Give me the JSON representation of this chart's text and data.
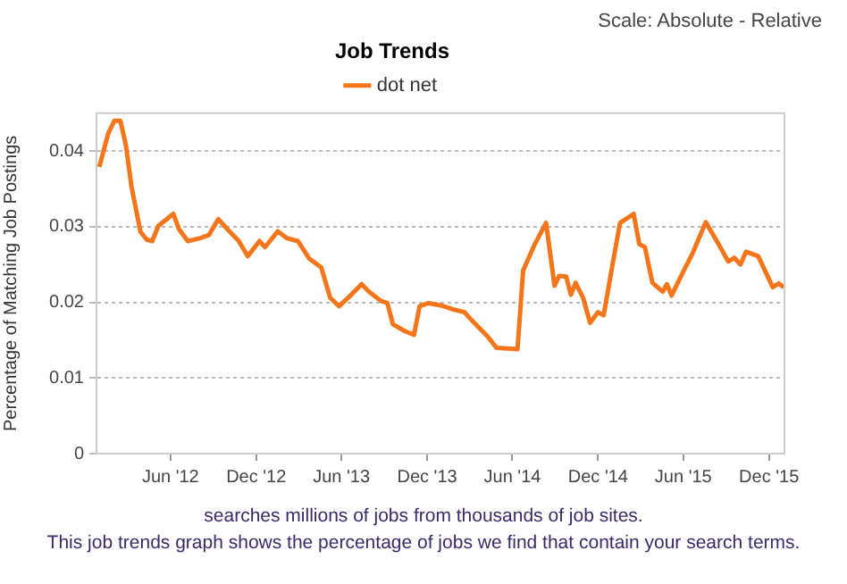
{
  "chart_data": {
    "type": "line",
    "title": "Job Trends",
    "ylabel": "Percentage of Matching Job Postings",
    "x": [
      "2012-01-01",
      "2012-01-20",
      "2012-02-02",
      "2012-02-15",
      "2012-02-27",
      "2012-03-10",
      "2012-03-29",
      "2012-04-11",
      "2012-04-23",
      "2012-05-06",
      "2012-06-07",
      "2012-06-19",
      "2012-07-08",
      "2012-08-04",
      "2012-08-22",
      "2012-09-11",
      "2012-09-30",
      "2012-10-25",
      "2012-11-13",
      "2012-12-08",
      "2012-12-20",
      "2013-01-16",
      "2013-02-04",
      "2013-02-28",
      "2013-03-24",
      "2013-04-19",
      "2013-05-08",
      "2013-05-27",
      "2013-06-22",
      "2013-07-14",
      "2013-07-30",
      "2013-08-24",
      "2013-09-07",
      "2013-09-19",
      "2013-10-14",
      "2013-11-03",
      "2013-11-15",
      "2013-12-04",
      "2013-12-30",
      "2014-01-24",
      "2014-02-19",
      "2014-03-02",
      "2014-04-09",
      "2014-04-28",
      "2014-06-12",
      "2014-06-24",
      "2014-07-19",
      "2014-08-12",
      "2014-08-30",
      "2014-09-09",
      "2014-09-24",
      "2014-10-04",
      "2014-10-14",
      "2014-10-30",
      "2014-11-14",
      "2014-12-01",
      "2014-12-13",
      "2015-01-02",
      "2015-01-17",
      "2015-02-15",
      "2015-02-27",
      "2015-03-11",
      "2015-03-27",
      "2015-04-18",
      "2015-04-27",
      "2015-05-07",
      "2015-06-02",
      "2015-06-21",
      "2015-07-19",
      "2015-08-17",
      "2015-09-05",
      "2015-09-18",
      "2015-10-01",
      "2015-10-13",
      "2015-11-08",
      "2015-12-09",
      "2015-12-22",
      "2016-01-02"
    ],
    "series": [
      {
        "name": "dot net",
        "color": "#f5761a",
        "values": [
          0.0379,
          0.0423,
          0.044,
          0.044,
          0.0407,
          0.0352,
          0.0293,
          0.0283,
          0.0281,
          0.0301,
          0.0317,
          0.0297,
          0.0281,
          0.0285,
          0.0289,
          0.031,
          0.0297,
          0.0281,
          0.0261,
          0.0281,
          0.0273,
          0.0294,
          0.0285,
          0.0281,
          0.0258,
          0.0246,
          0.0206,
          0.0195,
          0.021,
          0.0224,
          0.0214,
          0.0202,
          0.0199,
          0.0171,
          0.0162,
          0.0157,
          0.0195,
          0.0199,
          0.0196,
          0.0191,
          0.0187,
          0.0179,
          0.0155,
          0.014,
          0.0138,
          0.0242,
          0.0277,
          0.0305,
          0.0222,
          0.0235,
          0.0234,
          0.021,
          0.0226,
          0.0206,
          0.0173,
          0.0187,
          0.0183,
          0.0254,
          0.0305,
          0.0317,
          0.0277,
          0.0273,
          0.0226,
          0.0214,
          0.0224,
          0.0209,
          0.0242,
          0.0265,
          0.0306,
          0.0275,
          0.0254,
          0.0259,
          0.025,
          0.0267,
          0.0261,
          0.022,
          0.0225,
          0.022
        ]
      }
    ],
    "xlim": [
      "2011-12-26",
      "2016-01-03"
    ],
    "xticks": [
      {
        "value": "2012-06-01",
        "label": "Jun '12"
      },
      {
        "value": "2012-12-01",
        "label": "Dec '12"
      },
      {
        "value": "2013-06-01",
        "label": "Jun '13"
      },
      {
        "value": "2013-12-01",
        "label": "Dec '13"
      },
      {
        "value": "2014-06-01",
        "label": "Jun '14"
      },
      {
        "value": "2014-12-01",
        "label": "Dec '14"
      },
      {
        "value": "2015-06-01",
        "label": "Jun '15"
      },
      {
        "value": "2015-12-01",
        "label": "Dec '15"
      }
    ],
    "ylim": [
      0,
      0.045
    ],
    "yticks": [
      0,
      0.01,
      0.02,
      0.03,
      0.04
    ],
    "grid": "y",
    "legend": "top",
    "marker": "none",
    "line_style": "solid",
    "annotations": [
      "Scale: Absolute - Relative",
      "searches millions of jobs from thousands of job sites.",
      "This job trends graph shows the percentage of jobs we find that contain your search terms."
    ]
  }
}
